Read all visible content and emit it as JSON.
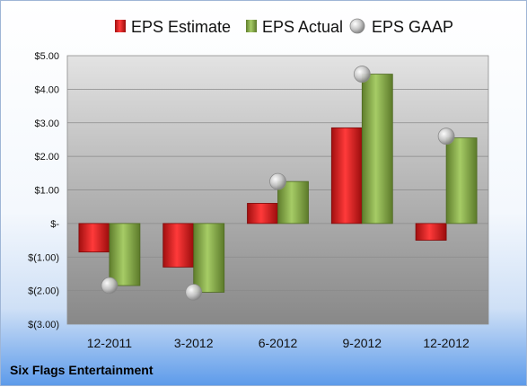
{
  "chart_data": {
    "type": "bar",
    "title": "",
    "xlabel": "",
    "ylabel": "",
    "company": "Six Flags Entertainment",
    "categories": [
      "12-2011",
      "3-2012",
      "6-2012",
      "9-2012",
      "12-2012"
    ],
    "series": [
      {
        "name": "EPS Estimate",
        "kind": "bar",
        "color": "#d42020",
        "values": [
          -0.85,
          -1.3,
          0.6,
          2.85,
          -0.5
        ]
      },
      {
        "name": "EPS Actual",
        "kind": "bar",
        "color": "#86aa48",
        "values": [
          -1.85,
          -2.05,
          1.25,
          4.45,
          2.55
        ]
      },
      {
        "name": "EPS GAAP",
        "kind": "marker",
        "color": "#b8b8b8",
        "values": [
          -1.85,
          -2.05,
          1.25,
          4.45,
          2.6
        ]
      }
    ],
    "ylim": [
      -3,
      5
    ],
    "y_ticks": [
      5,
      4,
      3,
      2,
      1,
      0,
      -1,
      -2,
      -3
    ],
    "y_tick_labels": [
      "$5.00",
      "$4.00",
      "$3.00",
      "$2.00",
      "$1.00",
      "$-",
      "$(1.00)",
      "$(2.00)",
      "$(3.00)"
    ],
    "grid": true,
    "legend": "top-center"
  }
}
